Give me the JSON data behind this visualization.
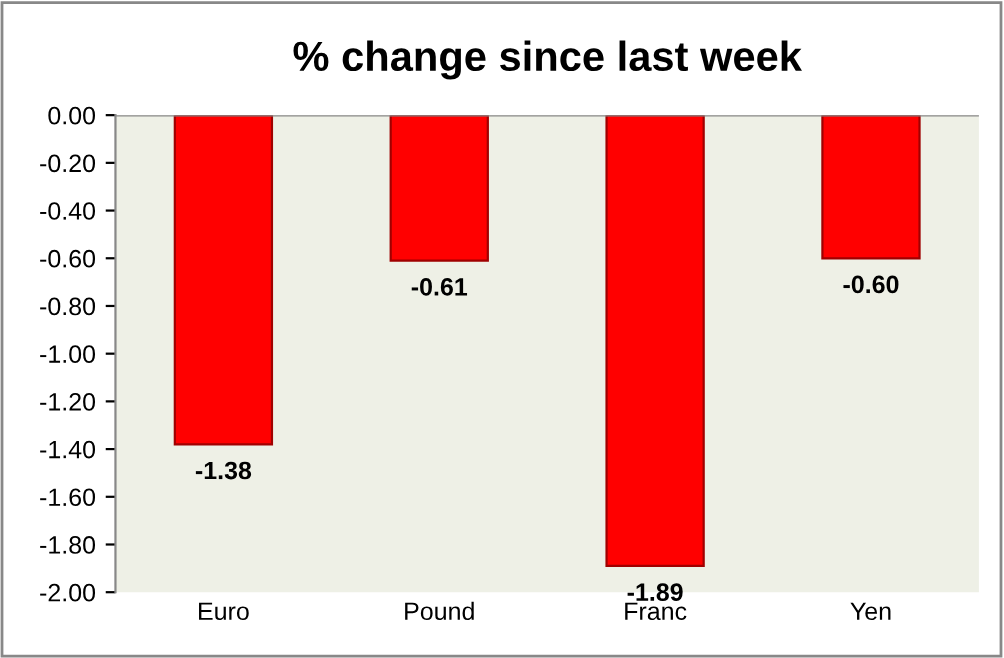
{
  "chart_data": {
    "type": "bar",
    "title": "% change since last week",
    "categories": [
      "Euro",
      "Pound",
      "Franc",
      "Yen"
    ],
    "series": [
      {
        "color": "#ff0000",
        "values": [
          -1.38,
          -0.61,
          -1.89,
          -0.6
        ],
        "value_labels": [
          "-1.38",
          "-0.61",
          "-1.89",
          "-0.60"
        ]
      }
    ],
    "ylim": [
      -2.0,
      0.0
    ],
    "yticks": [
      {
        "value": 0,
        "label": "0.00"
      },
      {
        "value": -0.2,
        "label": "-0.20"
      },
      {
        "value": -0.4,
        "label": "-0.40"
      },
      {
        "value": -0.6,
        "label": "-0.60"
      },
      {
        "value": -0.8,
        "label": "-0.80"
      },
      {
        "value": -1.0,
        "label": "-1.00"
      },
      {
        "value": -1.2,
        "label": "-1.20"
      },
      {
        "value": -1.4,
        "label": "-1.40"
      },
      {
        "value": -1.6,
        "label": "-1.60"
      },
      {
        "value": -1.8,
        "label": "-1.80"
      },
      {
        "value": -2.0,
        "label": "-2.00"
      }
    ],
    "grid": false,
    "legend": false
  }
}
